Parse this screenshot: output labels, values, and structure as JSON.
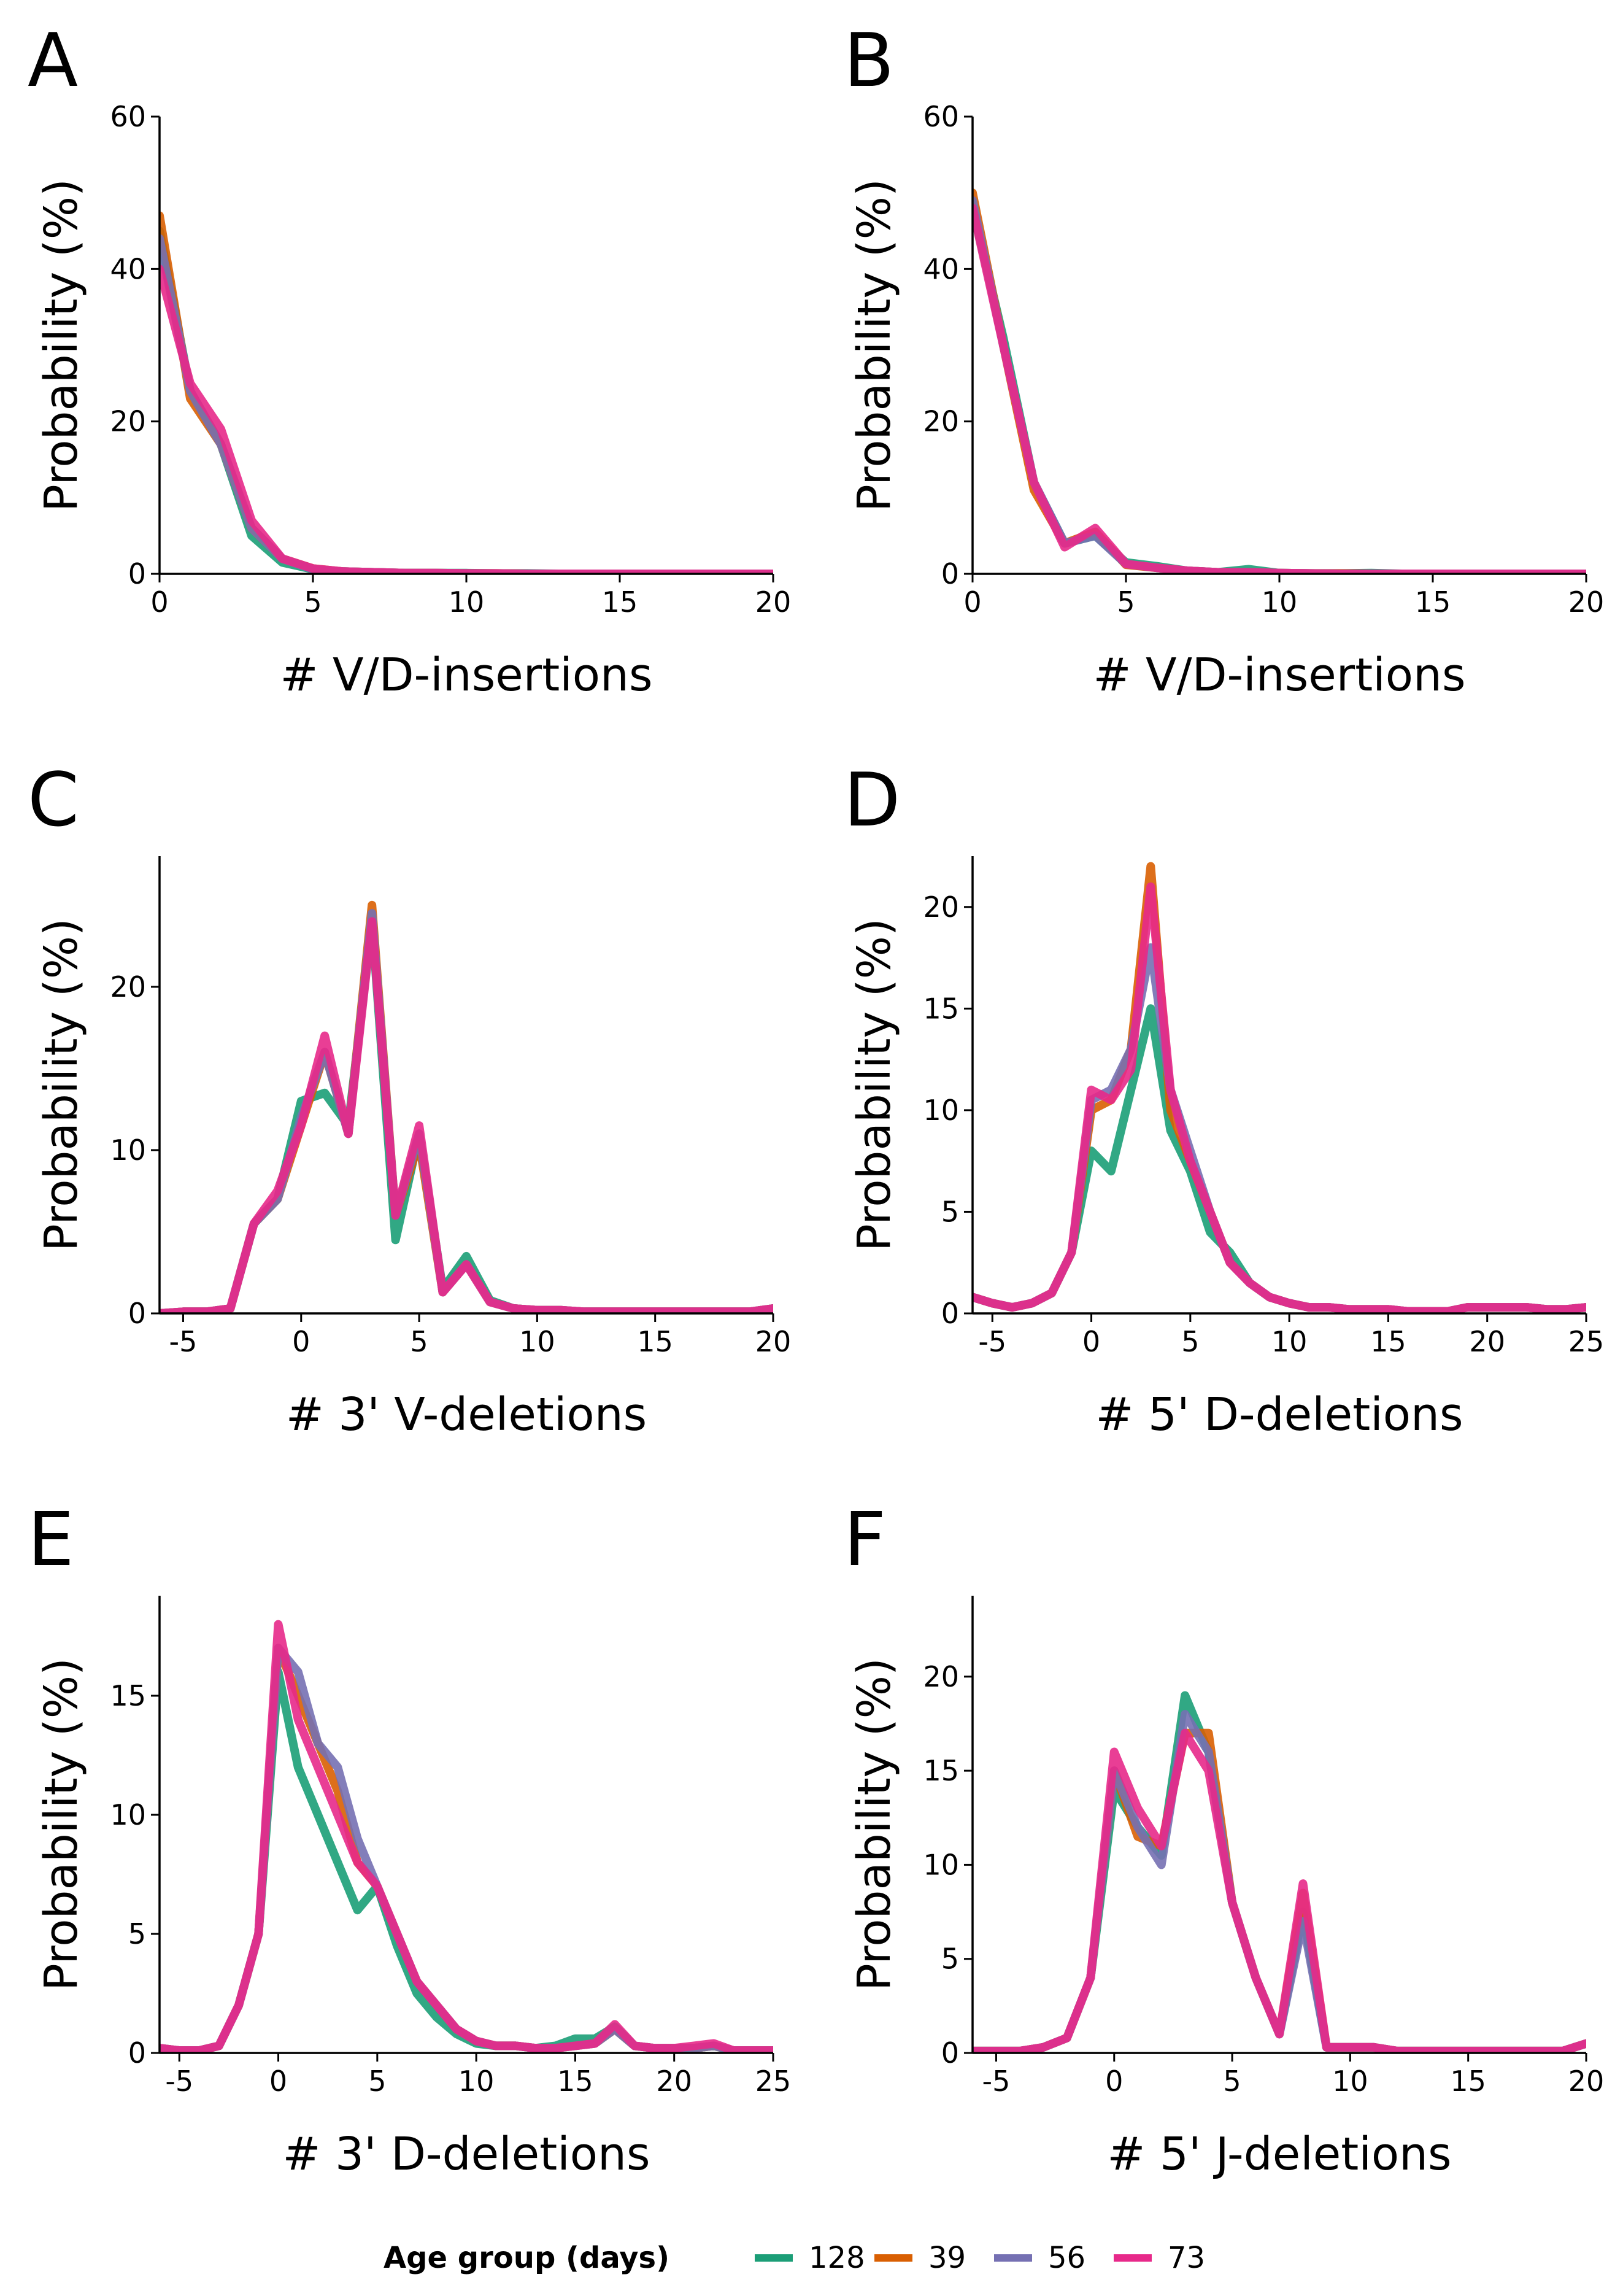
{
  "chart_data": [
    {
      "panel_letter": "A",
      "type": "line",
      "xlabel": "# V/D-insertions",
      "ylabel": "Probability (%)",
      "xlim": [
        0,
        20
      ],
      "ylim": [
        0,
        60
      ],
      "xticks": [
        0,
        5,
        10,
        15,
        20
      ],
      "yticks": [
        0,
        20,
        40,
        60
      ],
      "x": [
        0,
        1,
        2,
        3,
        4,
        5,
        6,
        7,
        8,
        9,
        10,
        11,
        12,
        13,
        14,
        15,
        16,
        17,
        18,
        19,
        20
      ],
      "series": [
        {
          "name": "128",
          "values": [
            45,
            24,
            17,
            5,
            1.5,
            0.6,
            0.3,
            0.2,
            0.1,
            0.1,
            0.1,
            0.05,
            0.05,
            0,
            0,
            0,
            0,
            0,
            0,
            0,
            0
          ]
        },
        {
          "name": "39",
          "values": [
            47,
            23,
            17,
            6,
            2,
            0.7,
            0.3,
            0.2,
            0.1,
            0.1,
            0.05,
            0.05,
            0,
            0,
            0,
            0,
            0,
            0,
            0,
            0,
            0
          ]
        },
        {
          "name": "56",
          "values": [
            44,
            24,
            17,
            6,
            2,
            0.6,
            0.3,
            0.2,
            0.1,
            0.1,
            0.05,
            0,
            0,
            0,
            0,
            0,
            0,
            0,
            0,
            0,
            0
          ]
        },
        {
          "name": "73",
          "values": [
            40,
            25,
            19,
            7,
            2,
            0.7,
            0.3,
            0.2,
            0.1,
            0.1,
            0.05,
            0.05,
            0,
            0,
            0,
            0,
            0,
            0,
            0,
            0,
            0
          ]
        }
      ]
    },
    {
      "panel_letter": "B",
      "type": "line",
      "xlabel": "# V/D-insertions",
      "ylabel": "Probability (%)",
      "xlim": [
        0,
        20
      ],
      "ylim": [
        0,
        60
      ],
      "xticks": [
        0,
        5,
        10,
        15,
        20
      ],
      "yticks": [
        0,
        20,
        40,
        60
      ],
      "x": [
        0,
        1,
        2,
        3,
        4,
        5,
        6,
        7,
        8,
        9,
        10,
        11,
        12,
        13,
        14,
        15,
        16,
        17,
        18,
        19,
        20
      ],
      "series": [
        {
          "name": "128",
          "values": [
            48,
            31,
            12,
            4,
            5,
            1.5,
            1,
            0.4,
            0.2,
            0.6,
            0.1,
            0.05,
            0.05,
            0.1,
            0,
            0,
            0,
            0,
            0,
            0,
            0
          ]
        },
        {
          "name": "39",
          "values": [
            50,
            30,
            11,
            4,
            5.5,
            1.2,
            0.8,
            0.4,
            0.2,
            0.2,
            0.1,
            0.05,
            0.05,
            0,
            0,
            0,
            0,
            0,
            0,
            0,
            0
          ]
        },
        {
          "name": "56",
          "values": [
            49,
            30,
            12,
            4,
            5,
            1.3,
            0.8,
            0.4,
            0.2,
            0.2,
            0.1,
            0.05,
            0,
            0,
            0,
            0,
            0,
            0,
            0,
            0,
            0
          ]
        },
        {
          "name": "73",
          "values": [
            48,
            30,
            12,
            3.5,
            6,
            1.3,
            0.8,
            0.4,
            0.2,
            0.2,
            0.1,
            0.05,
            0,
            0,
            0,
            0,
            0,
            0,
            0,
            0,
            0
          ]
        }
      ]
    },
    {
      "panel_letter": "C",
      "type": "line",
      "xlabel": "# 3' V-deletions",
      "ylabel": "Probability (%)",
      "xlim": [
        -6,
        20
      ],
      "ylim": [
        0,
        28
      ],
      "xticks": [
        -5,
        0,
        5,
        10,
        15,
        20
      ],
      "yticks": [
        0,
        10,
        20
      ],
      "x": [
        -6,
        -5,
        -4,
        -3,
        -2,
        -1,
        0,
        1,
        2,
        3,
        4,
        5,
        6,
        7,
        8,
        9,
        10,
        11,
        12,
        13,
        14,
        15,
        16,
        17,
        18,
        19,
        20
      ],
      "series": [
        {
          "name": "128",
          "values": [
            0,
            0.1,
            0.1,
            0.3,
            5.5,
            7,
            13,
            13.5,
            11.5,
            24,
            4.5,
            11,
            1.5,
            3.5,
            0.8,
            0.3,
            0.2,
            0.2,
            0.1,
            0.1,
            0.1,
            0.1,
            0.1,
            0.1,
            0.1,
            0.1,
            0.3
          ]
        },
        {
          "name": "39",
          "values": [
            0,
            0.1,
            0.1,
            0.3,
            5.5,
            7,
            11.5,
            16,
            11,
            25,
            6,
            10.5,
            1.3,
            3,
            0.7,
            0.3,
            0.2,
            0.2,
            0.1,
            0.1,
            0.1,
            0.1,
            0.1,
            0.1,
            0.1,
            0.1,
            0.3
          ]
        },
        {
          "name": "56",
          "values": [
            0,
            0.1,
            0.1,
            0.3,
            5.5,
            7,
            12,
            16,
            11,
            24.5,
            6,
            11,
            1.3,
            3,
            0.7,
            0.3,
            0.2,
            0.2,
            0.1,
            0.1,
            0.1,
            0.1,
            0.1,
            0.1,
            0.1,
            0.1,
            0.3
          ]
        },
        {
          "name": "73",
          "values": [
            0,
            0.1,
            0.1,
            0.3,
            5.5,
            7.5,
            11.5,
            17,
            11,
            24,
            6,
            11.5,
            1.3,
            3,
            0.7,
            0.3,
            0.2,
            0.2,
            0.1,
            0.1,
            0.1,
            0.1,
            0.1,
            0.1,
            0.1,
            0.1,
            0.3
          ]
        }
      ]
    },
    {
      "panel_letter": "D",
      "type": "line",
      "xlabel": "# 5' D-deletions",
      "ylabel": "Probability (%)",
      "xlim": [
        -6,
        25
      ],
      "ylim": [
        0,
        22.5
      ],
      "xticks": [
        -5,
        0,
        5,
        10,
        15,
        20,
        25
      ],
      "yticks": [
        0,
        5,
        10,
        15,
        20
      ],
      "x": [
        -6,
        -5,
        -4,
        -3,
        -2,
        -1,
        0,
        1,
        2,
        3,
        4,
        5,
        6,
        7,
        8,
        9,
        10,
        11,
        12,
        13,
        14,
        15,
        16,
        17,
        18,
        19,
        20,
        21,
        22,
        23,
        24,
        25
      ],
      "series": [
        {
          "name": "128",
          "values": [
            0.8,
            0.5,
            0.3,
            0.5,
            1,
            3,
            8,
            7,
            11,
            15,
            9,
            7,
            4,
            3,
            1.5,
            0.8,
            0.5,
            0.3,
            0.3,
            0.2,
            0.2,
            0.2,
            0.1,
            0.1,
            0.1,
            0.3,
            0.3,
            0.3,
            0.3,
            0.2,
            0.2,
            0.3
          ]
        },
        {
          "name": "39",
          "values": [
            0.8,
            0.5,
            0.3,
            0.5,
            1,
            3,
            10,
            10.5,
            13,
            22,
            10,
            7.5,
            5,
            2.5,
            1.5,
            0.8,
            0.5,
            0.3,
            0.3,
            0.2,
            0.2,
            0.2,
            0.1,
            0.1,
            0.1,
            0.3,
            0.3,
            0.3,
            0.3,
            0.2,
            0.2,
            0.3
          ]
        },
        {
          "name": "56",
          "values": [
            0.8,
            0.5,
            0.3,
            0.5,
            1,
            3,
            10.5,
            11,
            13,
            18,
            11,
            8,
            5,
            2.5,
            1.5,
            0.8,
            0.5,
            0.3,
            0.3,
            0.2,
            0.2,
            0.2,
            0.1,
            0.1,
            0.1,
            0.3,
            0.3,
            0.3,
            0.3,
            0.2,
            0.2,
            0.3
          ]
        },
        {
          "name": "73",
          "values": [
            0.8,
            0.5,
            0.3,
            0.5,
            1,
            3,
            11,
            10.5,
            12,
            21,
            11,
            7.5,
            5,
            2.5,
            1.5,
            0.8,
            0.5,
            0.3,
            0.3,
            0.2,
            0.2,
            0.2,
            0.1,
            0.1,
            0.1,
            0.3,
            0.3,
            0.3,
            0.3,
            0.2,
            0.2,
            0.3
          ]
        }
      ]
    },
    {
      "panel_letter": "E",
      "type": "line",
      "xlabel": "# 3' D-deletions",
      "ylabel": "Probability (%)",
      "xlim": [
        -6,
        25
      ],
      "ylim": [
        0,
        19.2
      ],
      "xticks": [
        -5,
        0,
        5,
        10,
        15,
        20,
        25
      ],
      "yticks": [
        0,
        5,
        10,
        15
      ],
      "x": [
        -6,
        -5,
        -4,
        -3,
        -2,
        -1,
        0,
        1,
        2,
        3,
        4,
        5,
        6,
        7,
        8,
        9,
        10,
        11,
        12,
        13,
        14,
        15,
        16,
        17,
        18,
        19,
        20,
        21,
        22,
        23,
        24,
        25
      ],
      "series": [
        {
          "name": "128",
          "values": [
            0.2,
            0.1,
            0.1,
            0.3,
            2,
            5,
            16,
            12,
            10,
            8,
            6,
            7,
            4.5,
            2.5,
            1.5,
            0.8,
            0.4,
            0.3,
            0.3,
            0.2,
            0.3,
            0.6,
            0.6,
            1.1,
            0.3,
            0.2,
            0.2,
            0.2,
            0.3,
            0.1,
            0.1,
            0.1
          ]
        },
        {
          "name": "39",
          "values": [
            0.2,
            0.1,
            0.1,
            0.3,
            2,
            5,
            17,
            15,
            13,
            11,
            8,
            7,
            5,
            3,
            2,
            1,
            0.5,
            0.3,
            0.3,
            0.2,
            0.2,
            0.3,
            0.4,
            1,
            0.3,
            0.2,
            0.2,
            0.2,
            0.3,
            0.1,
            0.1,
            0.1
          ]
        },
        {
          "name": "56",
          "values": [
            0.2,
            0.1,
            0.1,
            0.3,
            2,
            5,
            17,
            16,
            13,
            12,
            9,
            7,
            5,
            3,
            2,
            1,
            0.5,
            0.3,
            0.3,
            0.2,
            0.2,
            0.3,
            0.4,
            1,
            0.3,
            0.2,
            0.2,
            0.2,
            0.3,
            0.1,
            0.1,
            0.1
          ]
        },
        {
          "name": "73",
          "values": [
            0.2,
            0.1,
            0.1,
            0.3,
            2,
            5,
            18,
            14,
            12,
            10,
            8,
            7,
            5,
            3,
            2,
            1,
            0.5,
            0.3,
            0.3,
            0.2,
            0.2,
            0.3,
            0.4,
            1.2,
            0.3,
            0.2,
            0.2,
            0.3,
            0.4,
            0.1,
            0.1,
            0.1
          ]
        }
      ]
    },
    {
      "panel_letter": "F",
      "type": "line",
      "xlabel": "# 5' J-deletions",
      "ylabel": "Probability (%)",
      "xlim": [
        -6,
        20
      ],
      "ylim": [
        0,
        24.3
      ],
      "xticks": [
        -5,
        0,
        5,
        10,
        15,
        20
      ],
      "yticks": [
        0,
        5,
        10,
        15,
        20
      ],
      "x": [
        -6,
        -5,
        -4,
        -3,
        -2,
        -1,
        0,
        1,
        2,
        3,
        4,
        5,
        6,
        7,
        8,
        9,
        10,
        11,
        12,
        13,
        14,
        15,
        16,
        17,
        18,
        19,
        20
      ],
      "series": [
        {
          "name": "128",
          "values": [
            0.1,
            0.1,
            0.1,
            0.3,
            0.8,
            4,
            14,
            12,
            10.5,
            19,
            16,
            8,
            4,
            1,
            7.5,
            0.3,
            0.3,
            0.3,
            0.1,
            0.1,
            0.1,
            0.1,
            0.1,
            0.1,
            0.1,
            0.1,
            0.5
          ]
        },
        {
          "name": "39",
          "values": [
            0.1,
            0.1,
            0.1,
            0.3,
            0.8,
            4,
            15,
            11.5,
            11,
            17,
            17,
            8,
            4,
            1,
            8.5,
            0.3,
            0.3,
            0.3,
            0.1,
            0.1,
            0.1,
            0.1,
            0.1,
            0.1,
            0.1,
            0.1,
            0.5
          ]
        },
        {
          "name": "56",
          "values": [
            0.1,
            0.1,
            0.1,
            0.3,
            0.8,
            4,
            15,
            12,
            10,
            18,
            16,
            8,
            4,
            1,
            7,
            0.3,
            0.3,
            0.3,
            0.1,
            0.1,
            0.1,
            0.1,
            0.1,
            0.1,
            0.1,
            0.1,
            0.5
          ]
        },
        {
          "name": "73",
          "values": [
            0.1,
            0.1,
            0.1,
            0.3,
            0.8,
            4,
            16,
            13,
            11,
            17,
            15,
            8,
            4,
            1,
            9,
            0.3,
            0.3,
            0.3,
            0.1,
            0.1,
            0.1,
            0.1,
            0.1,
            0.1,
            0.1,
            0.1,
            0.5
          ]
        }
      ]
    }
  ],
  "legend": {
    "title": "Age group (days)",
    "placement": "bottom",
    "items": [
      {
        "label": "128",
        "color": "#1b9e77"
      },
      {
        "label": "39",
        "color": "#d95f02"
      },
      {
        "label": "56",
        "color": "#7570b3"
      },
      {
        "label": "73",
        "color": "#e7298a"
      }
    ]
  },
  "colors": {
    "128": "#1b9e77",
    "39": "#d95f02",
    "56": "#7570b3",
    "73": "#e7298a"
  }
}
